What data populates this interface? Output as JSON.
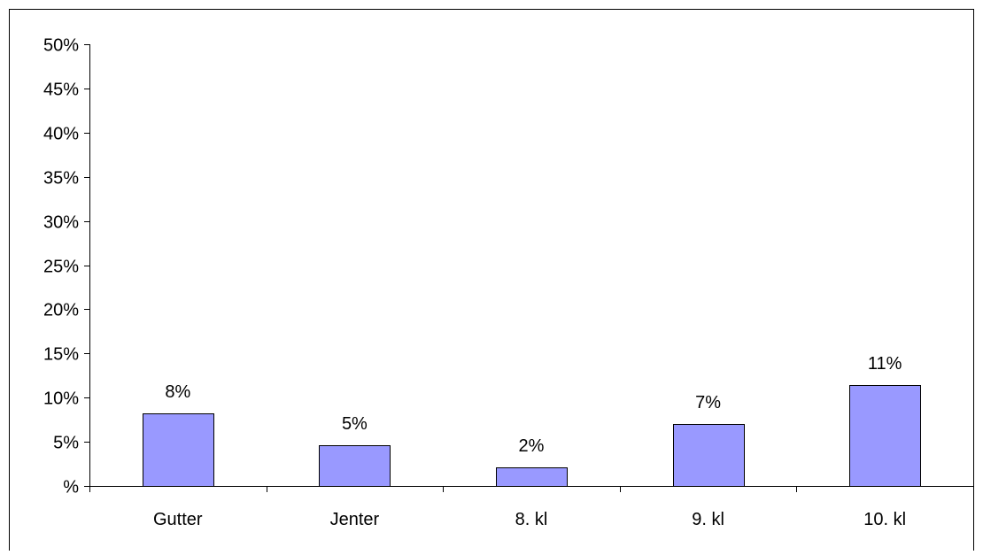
{
  "chart_data": {
    "type": "bar",
    "categories": [
      "Gutter",
      "Jenter",
      "8. kl",
      "9. kl",
      "10. kl"
    ],
    "values": [
      8.2,
      4.6,
      2.1,
      7.0,
      11.4
    ],
    "data_labels": [
      "8%",
      "5%",
      "2%",
      "7%",
      "11%"
    ],
    "title": "",
    "xlabel": "",
    "ylabel": "",
    "ylim": [
      0,
      50
    ],
    "y_ticks": [
      0,
      5,
      10,
      15,
      20,
      25,
      30,
      35,
      40,
      45,
      50
    ],
    "y_tick_labels": [
      "%",
      "5%",
      "10%",
      "15%",
      "20%",
      "25%",
      "30%",
      "35%",
      "40%",
      "45%",
      "50%"
    ],
    "grid": false,
    "legend": "none",
    "colors": {
      "bar_fill": "#9999ff",
      "bar_stroke": "#000000",
      "axis": "#000000",
      "frame": "#000000",
      "background": "#ffffff"
    }
  }
}
